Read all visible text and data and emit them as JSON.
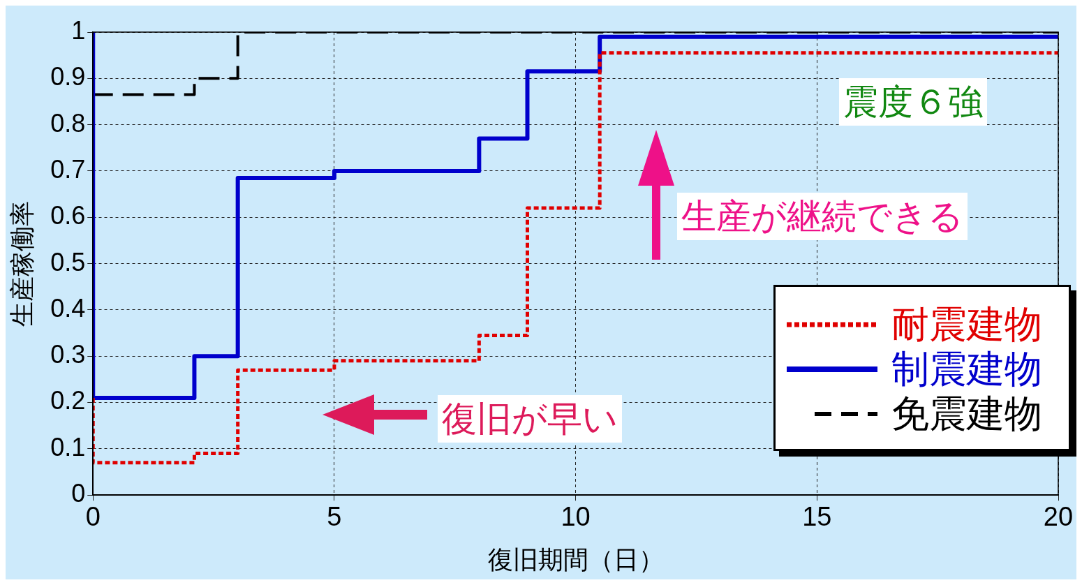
{
  "chart_data": {
    "type": "step",
    "xlabel": "復旧期間（日）",
    "ylabel": "生産稼働率",
    "xlim": [
      0,
      20
    ],
    "xticks": [
      0,
      5,
      10,
      15,
      20
    ],
    "ylim": [
      0,
      1
    ],
    "yticks": [
      0,
      {
        "value": 0.1,
        "label": "0.1"
      },
      {
        "value": 0.2,
        "label": "0.2"
      },
      {
        "value": 0.3,
        "label": "0.3"
      },
      {
        "value": 0.4,
        "label": "0.4"
      },
      {
        "value": 0.5,
        "label": "0.5"
      },
      {
        "value": 0.6,
        "label": "0.6"
      },
      {
        "value": 0.7,
        "label": "0.7"
      },
      {
        "value": 0.8,
        "label": "0.8"
      },
      {
        "value": 0.9,
        "label": "0.9"
      },
      1
    ],
    "grid": true,
    "legend": "bottom right",
    "marker": "none",
    "series": [
      {
        "name": "耐震建物",
        "color": "#e00000",
        "line_style": "dotted",
        "x": [
          0,
          0,
          2.1,
          3,
          5,
          8,
          9,
          10.5,
          20
        ],
        "values": [
          0.21,
          0.07,
          0.09,
          0.27,
          0.29,
          0.345,
          0.62,
          0.955,
          0.955
        ]
      },
      {
        "name": "制震建物",
        "color": "#0000cc",
        "line_style": "solid",
        "x": [
          0,
          0,
          2.1,
          3,
          5,
          8,
          9,
          10.5,
          20
        ],
        "values": [
          1,
          0.21,
          0.3,
          0.685,
          0.7,
          0.77,
          0.915,
          0.99,
          0.99
        ]
      },
      {
        "name": "免震建物",
        "color": "#000000",
        "line_style": "dashed",
        "x": [
          0,
          0,
          2.1,
          3,
          20
        ],
        "values": [
          1,
          0.865,
          0.9,
          1,
          1
        ]
      }
    ],
    "annotations": [
      "震度６強",
      "生産が継続できる",
      "復旧が早い"
    ]
  }
}
